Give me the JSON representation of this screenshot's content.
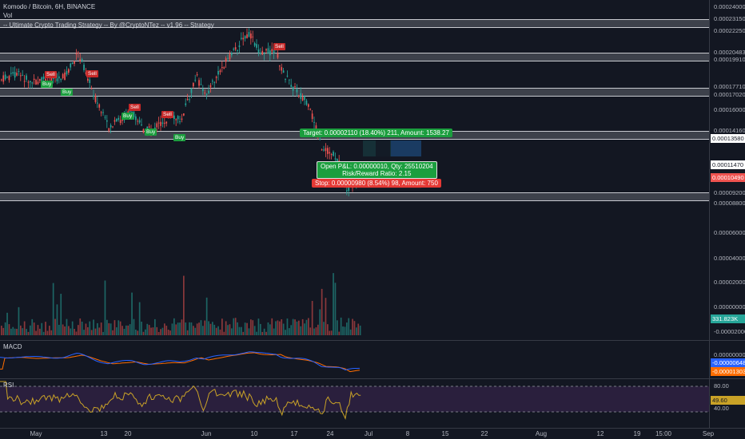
{
  "header": {
    "symbol_title": "Komodo / Bitcoin, 6H, BINANCE",
    "vol_label": "Vol",
    "strategy_title": "-- Ultimate Crypto Trading Strategy -- By @CryptoNTez -- v1.96 -- Strategy"
  },
  "price_axis": {
    "ticks": [
      "0.00024000",
      "0.00023150",
      "0.00022250",
      "0.00020483",
      "0.00019910",
      "0.00017710",
      "0.00017020",
      "0.00016000",
      "0.00014160",
      "0.00013580",
      "0.00011470",
      "0.00010490",
      "0.00009200",
      "0.00008800",
      "0.00006000",
      "0.00004000",
      "0.00002000",
      "0.00000000",
      "-0.00002000"
    ],
    "volume_badge": "331.823K",
    "macd_ticks": [
      "0.00000000"
    ],
    "macd_badge_1": "-0.00000648",
    "macd_badge_2": "-0.00001303",
    "rsi_ticks": [
      "80.00",
      "40.00"
    ],
    "rsi_badge": "49.60"
  },
  "time_axis": {
    "ticks": [
      "May",
      "13",
      "20",
      "Jun",
      "10",
      "17",
      "24",
      "Jul",
      "8",
      "15",
      "22",
      "Aug",
      "12",
      "19",
      "15:00",
      "Sep"
    ]
  },
  "signals": {
    "buy": "Buy",
    "sell": "Sell"
  },
  "trade": {
    "target": "Target: 0.00002110 (18.40%) 211, Amount: 1538.27",
    "open_pnl": "Open P&L: 0.00000010, Qty: 25510204",
    "risk_reward": "Risk/Reward Ratio: 2.15",
    "stop": "Stop: 0.00000980 (8.54%) 98, Amount: 750"
  },
  "indicators": {
    "macd_label": "MACD",
    "rsi_label": "RSI"
  },
  "colors": {
    "background": "#131722",
    "up": "#26a69a",
    "down": "#ef5350",
    "macd_line": "#2962ff",
    "signal_line": "#ff6d00",
    "rsi_line": "#c9a227",
    "rsi_band": "#2a1f3d"
  }
}
